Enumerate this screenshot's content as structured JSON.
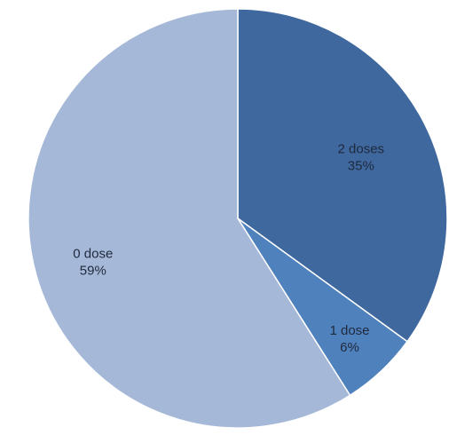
{
  "chart_data": {
    "type": "pie",
    "title": "",
    "slices": [
      {
        "name": "2 doses",
        "value": 35,
        "label": "2 doses",
        "pct_label": "35%",
        "color": "#3f689e"
      },
      {
        "name": "1 dose",
        "value": 6,
        "label": "1 dose",
        "pct_label": "6%",
        "color": "#4f81bd"
      },
      {
        "name": "0 dose",
        "value": 59,
        "label": "0 dose",
        "pct_label": "59%",
        "color": "#a6b8d8"
      }
    ],
    "start_angle_deg": 0,
    "direction": "clockwise",
    "legend": "none"
  }
}
